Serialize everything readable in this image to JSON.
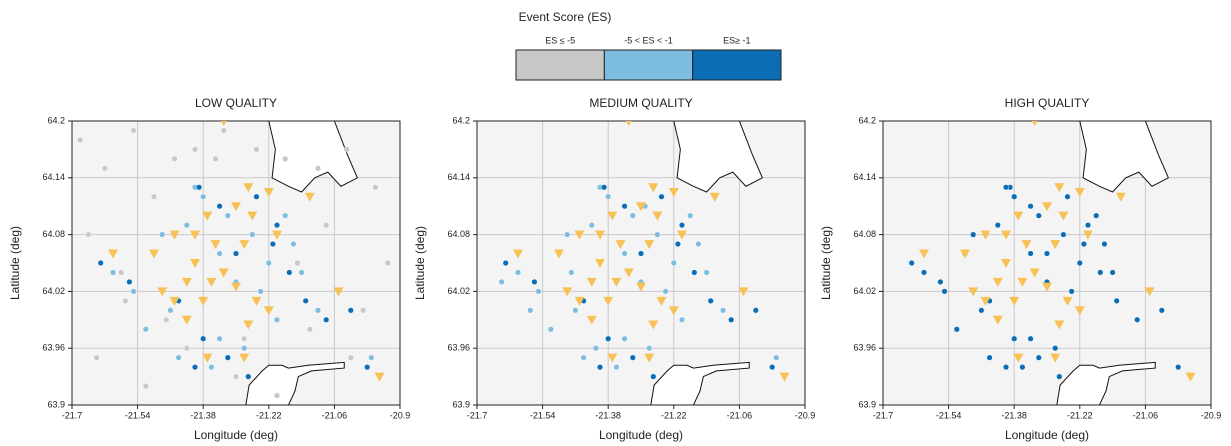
{
  "legend": {
    "title": "Event Score (ES)",
    "entries": [
      {
        "label": "ES ≤ -5",
        "color": "#c8c8c8"
      },
      {
        "label": "-5 < ES < -1",
        "color": "#7dbde0"
      },
      {
        "label": "ES≥ -1",
        "color": "#0b6db5"
      }
    ]
  },
  "chart_data": [
    {
      "type": "scatter",
      "title": "LOW QUALITY",
      "xlabel": "Longitude (deg)",
      "ylabel": "Latitude (deg)",
      "xlim": [
        -21.7,
        -20.9
      ],
      "ylim": [
        63.9,
        64.2
      ],
      "xticks": [
        -21.7,
        -21.54,
        -21.38,
        -21.22,
        -21.06,
        -20.9
      ],
      "yticks": [
        63.9,
        63.96,
        64.02,
        64.08,
        64.14,
        64.2
      ],
      "grid": true,
      "series": [
        {
          "color": "#c8c8c8",
          "marker": "circle",
          "x": [
            -21.68,
            -21.62,
            -21.55,
            -21.5,
            -21.45,
            -21.4,
            -21.33,
            -21.25,
            -21.18,
            -21.1,
            -21.03,
            -20.96,
            -21.66,
            -21.58,
            -21.47,
            -21.36,
            -21.28,
            -21.15,
            -21.08,
            -20.99,
            -21.64,
            -21.52,
            -21.42,
            -21.3,
            -21.2,
            -21.12,
            -21.02,
            -20.93,
            -21.57,
            -21.35
          ],
          "y": [
            64.18,
            64.15,
            64.19,
            64.12,
            64.16,
            64.17,
            64.19,
            64.17,
            64.16,
            64.15,
            64.17,
            64.13,
            64.08,
            64.04,
            63.99,
            63.94,
            63.97,
            64.05,
            64.09,
            64.0,
            63.95,
            63.92,
            63.96,
            63.93,
            63.91,
            63.98,
            63.95,
            64.05,
            64.01,
            64.16
          ]
        },
        {
          "color": "#7dbde0",
          "marker": "circle",
          "x": [
            -21.6,
            -21.55,
            -21.5,
            -21.46,
            -21.42,
            -21.38,
            -21.34,
            -21.3,
            -21.26,
            -21.22,
            -21.18,
            -21.14,
            -21.1,
            -21.52,
            -21.44,
            -21.36,
            -21.28,
            -21.2,
            -21.4,
            -21.32,
            -21.24,
            -21.16,
            -20.97,
            -21.48,
            -21.34
          ],
          "y": [
            64.04,
            64.02,
            64.06,
            64.0,
            64.09,
            64.12,
            64.06,
            64.03,
            64.08,
            64.05,
            64.1,
            64.04,
            64.0,
            63.98,
            63.95,
            63.94,
            63.96,
            63.99,
            64.13,
            64.1,
            64.02,
            64.07,
            63.95,
            64.08,
            63.97
          ]
        },
        {
          "color": "#0b6db5",
          "marker": "circle",
          "x": [
            -21.63,
            -21.56,
            -21.44,
            -21.39,
            -21.34,
            -21.3,
            -21.25,
            -21.21,
            -21.17,
            -21.13,
            -21.08,
            -21.4,
            -21.32,
            -21.27,
            -21.2,
            -21.38,
            -21.02,
            -20.98
          ],
          "y": [
            64.05,
            64.03,
            64.01,
            64.13,
            64.11,
            64.06,
            64.12,
            64.07,
            64.04,
            64.01,
            63.99,
            63.94,
            63.95,
            63.93,
            64.09,
            63.97,
            64.0,
            63.94
          ]
        },
        {
          "color": "#f7c155",
          "marker": "triangle",
          "x": [
            -21.33,
            -21.27,
            -21.22,
            -21.12,
            -21.3,
            -21.26,
            -21.37,
            -21.45,
            -21.4,
            -21.35,
            -21.28,
            -21.2,
            -21.6,
            -21.5,
            -21.4,
            -21.33,
            -21.42,
            -21.36,
            -21.48,
            -21.3,
            -21.38,
            -21.45,
            -21.25,
            -21.22,
            -21.42,
            -21.05,
            -21.27,
            -21.37,
            -21.28,
            -20.95
          ],
          "y": [
            64.2,
            64.13,
            64.125,
            64.12,
            64.11,
            64.1,
            64.1,
            64.08,
            64.08,
            64.07,
            64.07,
            64.08,
            64.06,
            64.06,
            64.05,
            64.04,
            64.03,
            64.03,
            64.02,
            64.025,
            64.01,
            64.01,
            64.01,
            64.0,
            63.99,
            64.02,
            63.985,
            63.95,
            63.95,
            63.93
          ]
        }
      ]
    },
    {
      "type": "scatter",
      "title": "MEDIUM QUALITY",
      "xlabel": "Longitude (deg)",
      "ylabel": "Latitude (deg)",
      "xlim": [
        -21.7,
        -20.9
      ],
      "ylim": [
        63.9,
        64.2
      ],
      "xticks": [
        -21.7,
        -21.54,
        -21.38,
        -21.22,
        -21.06,
        -20.9
      ],
      "yticks": [
        63.9,
        63.96,
        64.02,
        64.08,
        64.14,
        64.2
      ],
      "grid": true,
      "series": [
        {
          "color": "#7dbde0",
          "marker": "circle",
          "x": [
            -21.6,
            -21.55,
            -21.5,
            -21.46,
            -21.42,
            -21.38,
            -21.34,
            -21.3,
            -21.26,
            -21.22,
            -21.18,
            -21.14,
            -21.1,
            -21.52,
            -21.44,
            -21.36,
            -21.28,
            -21.2,
            -21.4,
            -21.32,
            -21.24,
            -21.16,
            -20.97,
            -21.48,
            -21.34,
            -21.64,
            -21.57,
            -21.47,
            -21.41,
            -21.29
          ],
          "y": [
            64.04,
            64.02,
            64.06,
            64.0,
            64.09,
            64.12,
            64.06,
            64.03,
            64.08,
            64.05,
            64.1,
            64.04,
            64.0,
            63.98,
            63.95,
            63.94,
            63.96,
            63.99,
            64.13,
            64.1,
            64.02,
            64.07,
            63.95,
            64.08,
            63.97,
            64.03,
            64.0,
            64.04,
            63.96,
            64.11
          ]
        },
        {
          "color": "#0b6db5",
          "marker": "circle",
          "x": [
            -21.63,
            -21.56,
            -21.44,
            -21.39,
            -21.34,
            -21.3,
            -21.25,
            -21.21,
            -21.17,
            -21.13,
            -21.08,
            -21.4,
            -21.32,
            -21.27,
            -21.2,
            -21.38,
            -21.02,
            -20.98
          ],
          "y": [
            64.05,
            64.03,
            64.01,
            64.13,
            64.11,
            64.06,
            64.12,
            64.07,
            64.04,
            64.01,
            63.99,
            63.94,
            63.95,
            63.93,
            64.09,
            63.97,
            64.0,
            63.94
          ]
        },
        {
          "color": "#f7c155",
          "marker": "triangle",
          "x": [
            -21.33,
            -21.27,
            -21.22,
            -21.12,
            -21.3,
            -21.26,
            -21.37,
            -21.45,
            -21.4,
            -21.35,
            -21.28,
            -21.2,
            -21.6,
            -21.5,
            -21.4,
            -21.33,
            -21.42,
            -21.36,
            -21.48,
            -21.3,
            -21.38,
            -21.45,
            -21.25,
            -21.22,
            -21.42,
            -21.05,
            -21.27,
            -21.37,
            -21.28,
            -20.95
          ],
          "y": [
            64.2,
            64.13,
            64.125,
            64.12,
            64.11,
            64.1,
            64.1,
            64.08,
            64.08,
            64.07,
            64.07,
            64.08,
            64.06,
            64.06,
            64.05,
            64.04,
            64.03,
            64.03,
            64.02,
            64.025,
            64.01,
            64.01,
            64.01,
            64.0,
            63.99,
            64.02,
            63.985,
            63.95,
            63.95,
            63.93
          ]
        }
      ]
    },
    {
      "type": "scatter",
      "title": "HIGH QUALITY",
      "xlabel": "Longitude (deg)",
      "ylabel": "Latitude (deg)",
      "xlim": [
        -21.7,
        -20.9
      ],
      "ylim": [
        63.9,
        64.2
      ],
      "xticks": [
        -21.7,
        -21.54,
        -21.38,
        -21.22,
        -21.06,
        -20.9
      ],
      "yticks": [
        63.9,
        63.96,
        64.02,
        64.08,
        64.14,
        64.2
      ],
      "grid": true,
      "series": [
        {
          "color": "#0b6db5",
          "marker": "circle",
          "x": [
            -21.63,
            -21.56,
            -21.44,
            -21.39,
            -21.34,
            -21.3,
            -21.25,
            -21.21,
            -21.17,
            -21.13,
            -21.08,
            -21.4,
            -21.32,
            -21.27,
            -21.2,
            -21.38,
            -21.02,
            -20.98,
            -21.6,
            -21.55,
            -21.5,
            -21.46,
            -21.42,
            -21.38,
            -21.34,
            -21.3,
            -21.26,
            -21.22,
            -21.18,
            -21.14,
            -21.52,
            -21.44,
            -21.36,
            -21.28,
            -21.4,
            -21.32,
            -21.24,
            -21.16,
            -21.48,
            -21.34
          ],
          "y": [
            64.05,
            64.03,
            64.01,
            64.13,
            64.11,
            64.06,
            64.12,
            64.07,
            64.04,
            64.01,
            63.99,
            63.94,
            63.95,
            63.93,
            64.09,
            63.97,
            64.0,
            63.94,
            64.04,
            64.02,
            64.06,
            64.0,
            64.09,
            64.12,
            64.06,
            64.03,
            64.08,
            64.05,
            64.1,
            64.04,
            63.98,
            63.95,
            63.94,
            63.96,
            64.13,
            64.1,
            64.02,
            64.07,
            64.08,
            63.97
          ]
        },
        {
          "color": "#f7c155",
          "marker": "triangle",
          "x": [
            -21.33,
            -21.27,
            -21.22,
            -21.12,
            -21.3,
            -21.26,
            -21.37,
            -21.45,
            -21.4,
            -21.35,
            -21.28,
            -21.2,
            -21.6,
            -21.5,
            -21.4,
            -21.33,
            -21.42,
            -21.36,
            -21.48,
            -21.3,
            -21.38,
            -21.45,
            -21.25,
            -21.22,
            -21.42,
            -21.05,
            -21.27,
            -21.37,
            -21.28,
            -20.95
          ],
          "y": [
            64.2,
            64.13,
            64.125,
            64.12,
            64.11,
            64.1,
            64.1,
            64.08,
            64.08,
            64.07,
            64.07,
            64.08,
            64.06,
            64.06,
            64.05,
            64.04,
            64.03,
            64.03,
            64.02,
            64.025,
            64.01,
            64.01,
            64.01,
            64.0,
            63.99,
            64.02,
            63.985,
            63.95,
            63.95,
            63.93
          ]
        }
      ]
    }
  ]
}
